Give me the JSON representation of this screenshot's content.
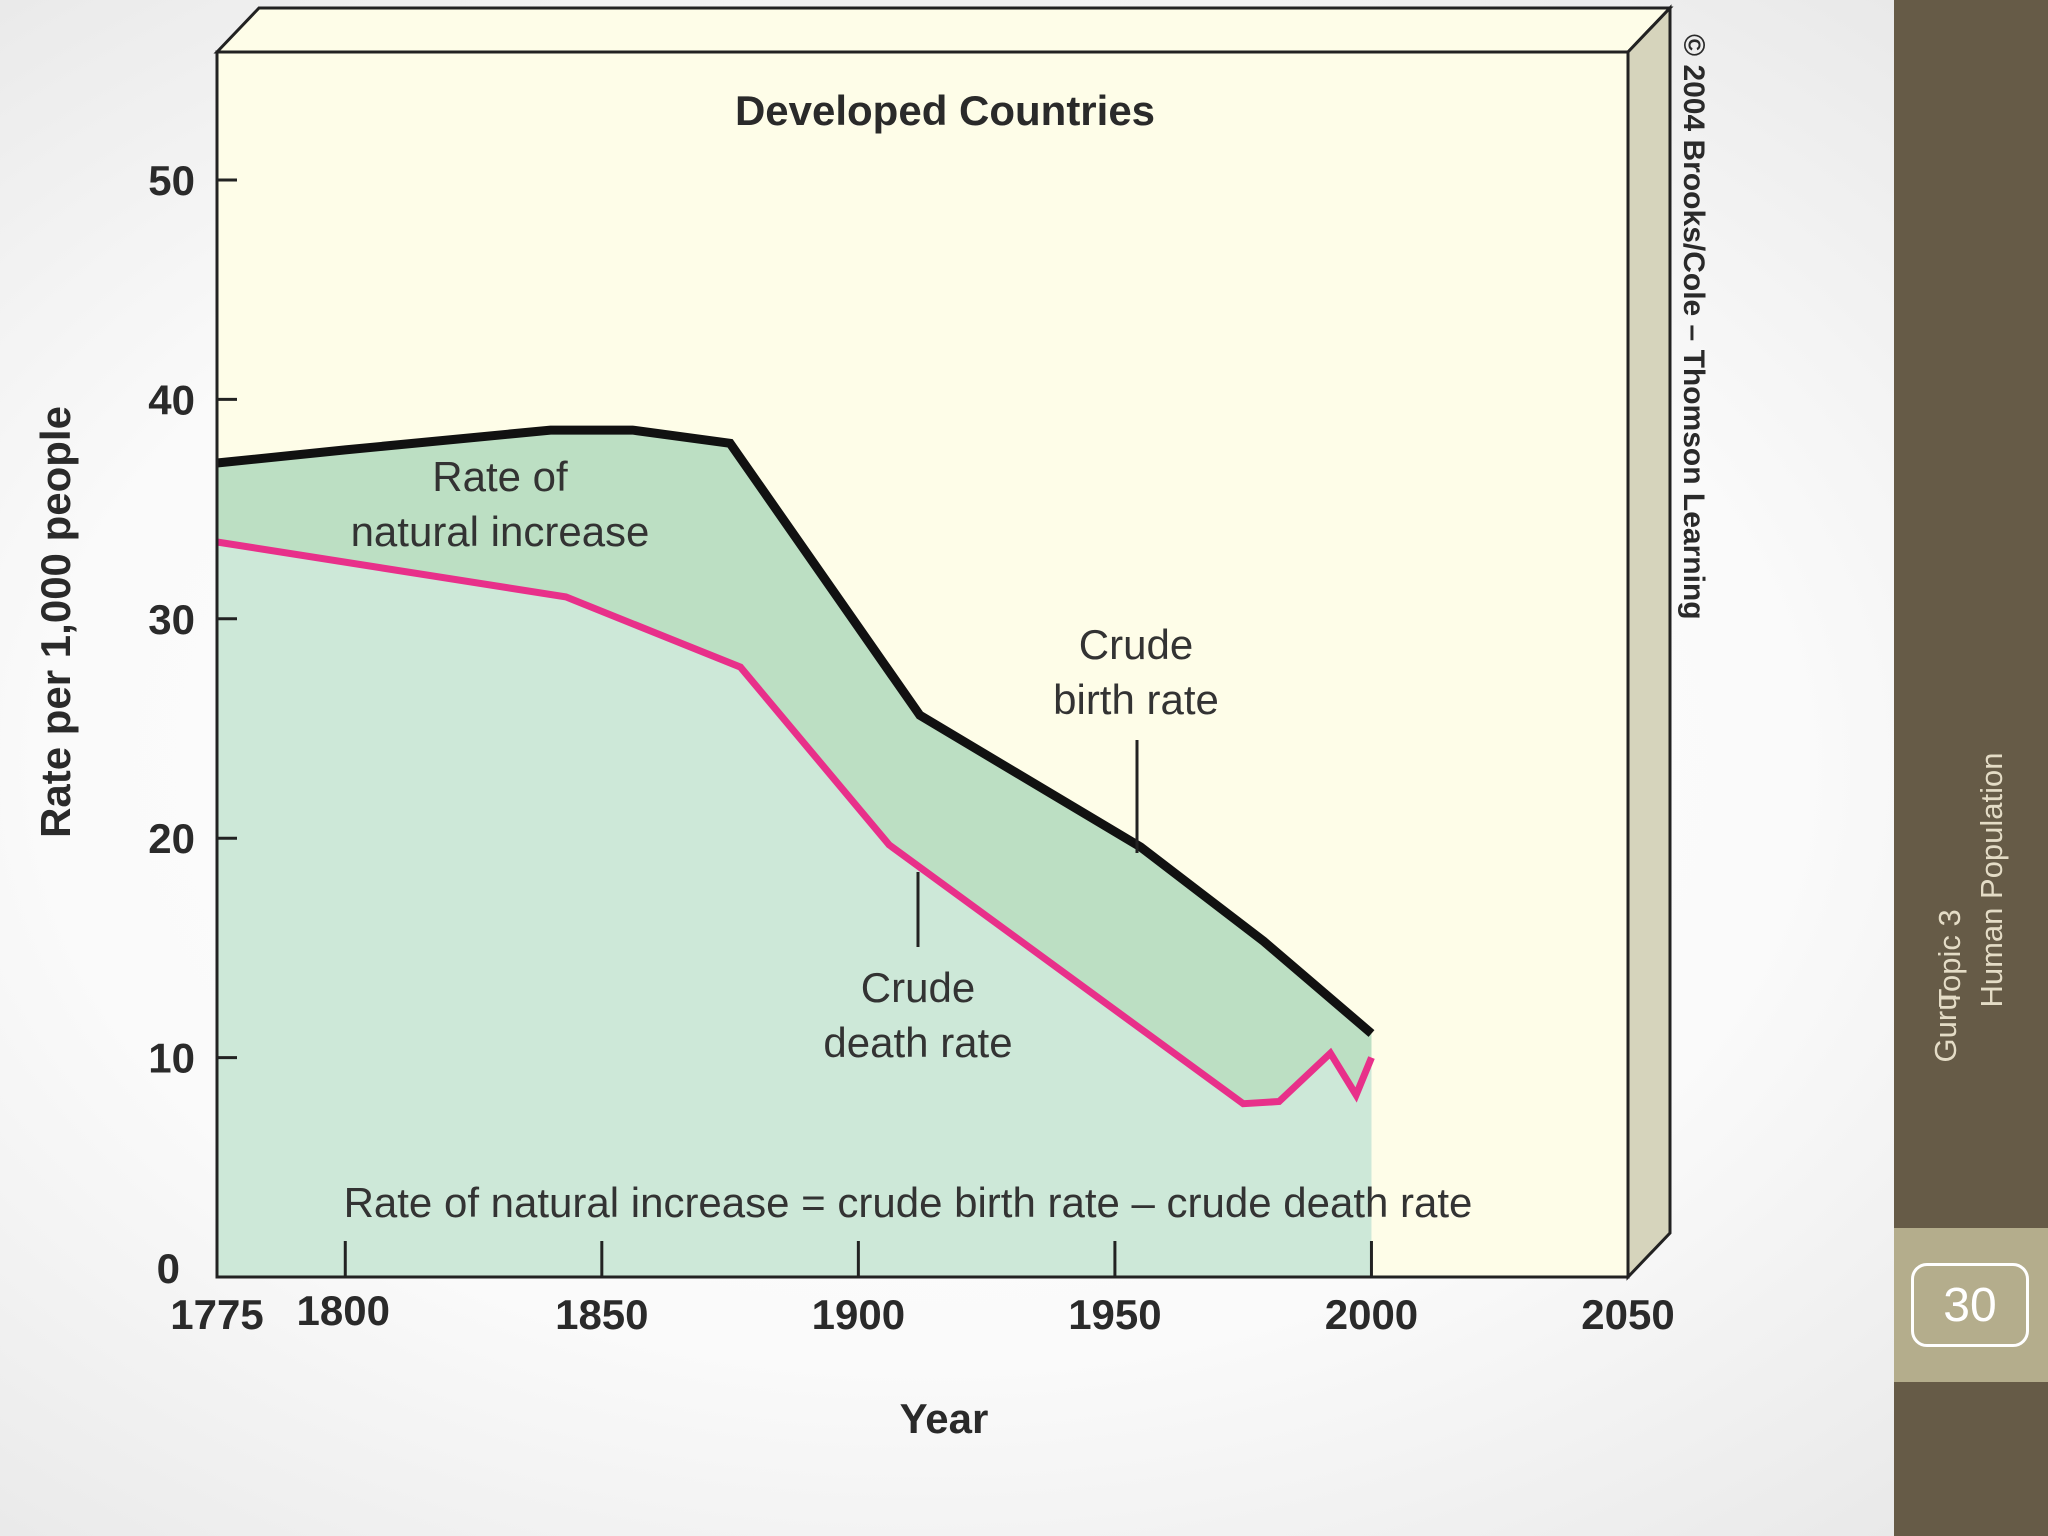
{
  "chart_data": {
    "type": "area",
    "title": "Developed Countries",
    "xlabel": "Year",
    "ylabel": "Rate per 1,000 people",
    "xlim": [
      1775,
      2050
    ],
    "ylim": [
      0,
      55
    ],
    "x_ticks": [
      1775,
      1800,
      1850,
      1900,
      1950,
      2000,
      2050
    ],
    "y_ticks": [
      0,
      10,
      20,
      30,
      40,
      50
    ],
    "grid": false,
    "series": [
      {
        "name": "Crude birth rate",
        "color": "#111111",
        "points": [
          [
            1775,
            37.1
          ],
          [
            1800,
            37.7
          ],
          [
            1840,
            38.6
          ],
          [
            1856,
            38.6
          ],
          [
            1875,
            38.0
          ],
          [
            1912,
            25.6
          ],
          [
            1955,
            19.6
          ],
          [
            1979,
            15.3
          ],
          [
            2000,
            11.1
          ]
        ]
      },
      {
        "name": "Crude death rate",
        "color": "#e8308a",
        "points": [
          [
            1775,
            33.5
          ],
          [
            1843,
            31.0
          ],
          [
            1877,
            27.8
          ],
          [
            1906,
            19.7
          ],
          [
            1975,
            7.9
          ],
          [
            1982,
            8.0
          ],
          [
            1992,
            10.2
          ],
          [
            1997,
            8.3
          ],
          [
            2000,
            10.0
          ]
        ]
      }
    ],
    "annotations": {
      "natural_increase": [
        "Rate of",
        "natural increase"
      ],
      "birth_rate": [
        "Crude",
        "birth rate"
      ],
      "death_rate": [
        "Crude",
        "death rate"
      ],
      "formula": "Rate of natural increase = crude birth rate – crude death rate"
    },
    "copyright": "© 2004 Brooks/Cole – Thomson Learning",
    "colors": {
      "plot_background": "#fefde8",
      "frame_side": "#d6d4bc",
      "natural_increase_fill": "#bcdfc3",
      "death_area_fill": "#cde8d8"
    }
  },
  "sidebar": {
    "topic": "Topic 3",
    "subject": "Human Population",
    "author": "Guru",
    "page_number": "30"
  }
}
